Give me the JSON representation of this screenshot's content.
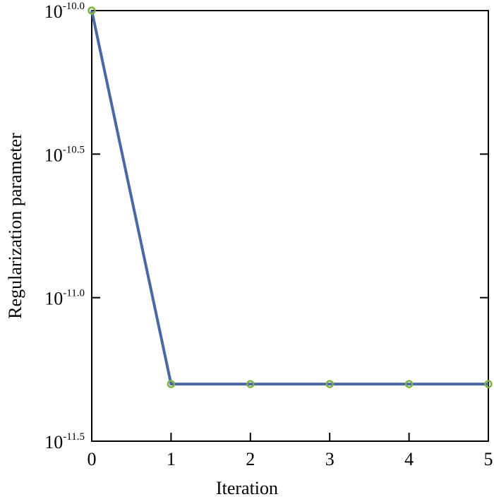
{
  "chart_data": {
    "type": "line",
    "xlabel": "Iteration",
    "ylabel": "Regularization parameter",
    "x": [
      0,
      1,
      2,
      3,
      4,
      5
    ],
    "series": [
      {
        "name": "Regularization parameter",
        "color": "#4a68a6",
        "marker_color": "#7cb342",
        "values": [
          1e-10,
          5e-12,
          5e-12,
          5e-12,
          5e-12,
          5e-12
        ]
      }
    ],
    "xlim": [
      0,
      5
    ],
    "xticks": [
      0,
      1,
      2,
      3,
      4,
      5
    ],
    "ylim": [
      3.16227766e-12,
      1e-10
    ],
    "yscale": "log",
    "yticks": [
      {
        "value": 1e-10,
        "label": "10-10.0"
      },
      {
        "value": 3.16227766e-11,
        "label": "10-10.5"
      },
      {
        "value": 1e-11,
        "label": "10-11.0"
      },
      {
        "value": 3.16227766e-12,
        "label": "10-11.5"
      }
    ],
    "grid": false
  }
}
